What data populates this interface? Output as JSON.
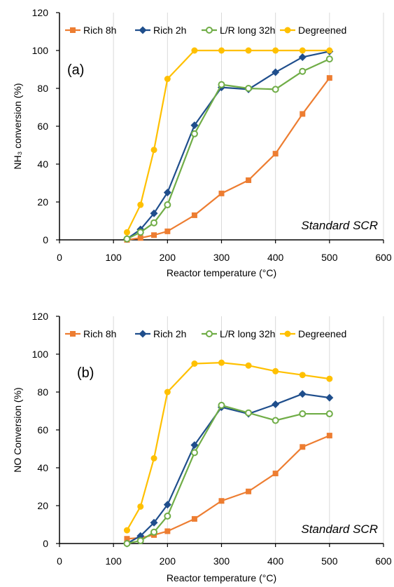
{
  "chart_data": [
    {
      "type": "line",
      "panel_label": "(a)",
      "annotation": "Standard SCR",
      "xlabel": "Reactor temperature (°C)",
      "ylabel": "NH₃ conversion (%)",
      "xlim": [
        0,
        600
      ],
      "ylim": [
        0,
        120
      ],
      "x_ticks": [
        "0",
        "100",
        "200",
        "300",
        "400",
        "500",
        "600"
      ],
      "y_ticks": [
        "0",
        "20",
        "40",
        "60",
        "80",
        "100",
        "120"
      ],
      "grid": "vertical",
      "legend_position": "top",
      "x": [
        125,
        150,
        175,
        200,
        250,
        300,
        350,
        400,
        450,
        500
      ],
      "series": [
        {
          "name": "Rich 8h",
          "color": "#ED7D31",
          "marker": "square",
          "values": [
            0,
            1,
            2.5,
            4.5,
            13,
            24.5,
            31.5,
            45.5,
            66.5,
            85.5
          ]
        },
        {
          "name": "Rich 2h",
          "color": "#1F4E8C",
          "marker": "diamond",
          "values": [
            0.5,
            5.5,
            14,
            25,
            60.5,
            80.5,
            79.5,
            88.5,
            96.5,
            99.5
          ]
        },
        {
          "name": "L/R long 32h",
          "color": "#70AD47",
          "marker": "open-circle",
          "values": [
            0.5,
            4,
            9,
            18.5,
            56,
            82,
            80,
            79.5,
            89,
            95.5
          ]
        },
        {
          "name": "Degreened",
          "color": "#FFC000",
          "marker": "circle",
          "values": [
            4,
            18.5,
            47.5,
            85,
            100,
            100,
            100,
            100,
            100,
            100
          ]
        }
      ]
    },
    {
      "type": "line",
      "panel_label": "(b)",
      "annotation": "Standard SCR",
      "xlabel": "Reactor temperature (°C)",
      "ylabel": "NO Conversion (%)",
      "xlim": [
        0,
        600
      ],
      "ylim": [
        0,
        120
      ],
      "x_ticks": [
        "0",
        "100",
        "200",
        "300",
        "400",
        "500",
        "600"
      ],
      "y_ticks": [
        "0",
        "20",
        "40",
        "60",
        "80",
        "100",
        "120"
      ],
      "grid": "vertical",
      "legend_position": "top",
      "x": [
        125,
        150,
        175,
        200,
        250,
        300,
        350,
        400,
        450,
        500
      ],
      "series": [
        {
          "name": "Rich 8h",
          "color": "#ED7D31",
          "marker": "square",
          "values": [
            2.5,
            3,
            4.5,
            6.5,
            13,
            22.5,
            27.5,
            37,
            51,
            57
          ]
        },
        {
          "name": "Rich 2h",
          "color": "#1F4E8C",
          "marker": "diamond",
          "values": [
            0,
            4,
            11,
            20.5,
            52,
            72,
            68.5,
            73.5,
            79,
            77
          ]
        },
        {
          "name": "L/R long 32h",
          "color": "#70AD47",
          "marker": "open-circle",
          "values": [
            0,
            1.5,
            6,
            14.5,
            48,
            73,
            69,
            65,
            68.5,
            68.5
          ]
        },
        {
          "name": "Degreened",
          "color": "#FFC000",
          "marker": "circle",
          "values": [
            7,
            19.5,
            45,
            80,
            95,
            95.5,
            94,
            91,
            89,
            87
          ]
        }
      ]
    }
  ]
}
